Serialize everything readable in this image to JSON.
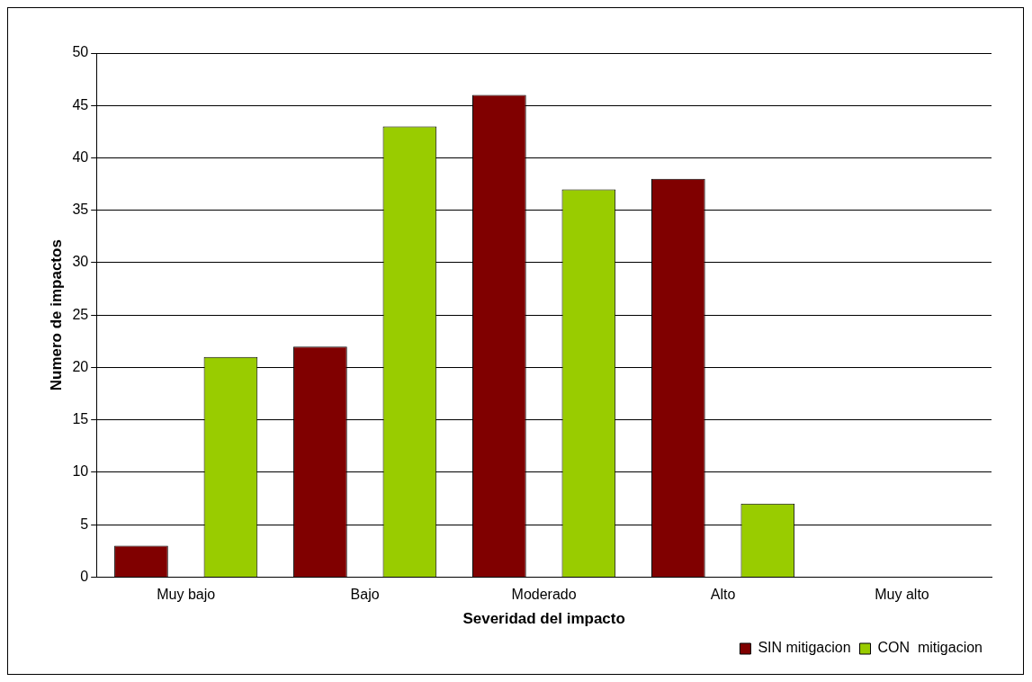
{
  "chart_data": {
    "type": "bar",
    "xlabel": "Severidad del impacto",
    "ylabel": "Numero de impactos",
    "categories": [
      "Muy bajo",
      "Bajo",
      "Moderado",
      "Alto",
      "Muy alto"
    ],
    "series": [
      {
        "name": "SIN mitigacion",
        "color": "#800000",
        "values": [
          3,
          22,
          46,
          38,
          0
        ]
      },
      {
        "name": "CON  mitigacion",
        "color": "#99cc00",
        "values": [
          21,
          43,
          37,
          7,
          0
        ]
      }
    ],
    "ylim": [
      0,
      50
    ],
    "yticks": [
      0,
      5,
      10,
      15,
      20,
      25,
      30,
      35,
      40,
      45,
      50
    ],
    "grid": "y",
    "legend": "bottom right"
  }
}
